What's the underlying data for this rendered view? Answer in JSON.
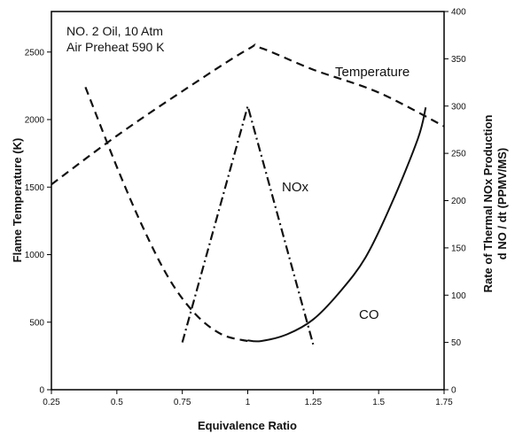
{
  "chart_data": {
    "type": "line",
    "x_axis": {
      "label": "Equivalence Ratio",
      "ticks": [
        "0.25",
        "0.5",
        "0.75",
        "1",
        "1.25",
        "1.5",
        "1.75"
      ],
      "lim": [
        0.25,
        1.75
      ]
    },
    "y_left": {
      "label": "Flame Temperature (K)",
      "ticks": [
        "0",
        "500",
        "1000",
        "1500",
        "2000",
        "2500"
      ],
      "lim": [
        0,
        2800
      ]
    },
    "y_right": {
      "label_line1": "Rate of Thermal NOx Production",
      "label_line2": "d NO / dt (PPMV/MS)",
      "ticks": [
        "0",
        "50",
        "100",
        "150",
        "200",
        "250",
        "300",
        "350",
        "400"
      ],
      "lim": [
        0,
        400
      ]
    },
    "annotations": [
      "NO. 2 Oil, 10 Atm",
      "Air Preheat 590 K"
    ],
    "series": [
      {
        "name": "Temperature",
        "axis": "left",
        "style": "dashed",
        "x": [
          0.25,
          0.5,
          0.75,
          1.0,
          1.05,
          1.25,
          1.5,
          1.75
        ],
        "y": [
          1520,
          1880,
          2210,
          2520,
          2530,
          2370,
          2200,
          1950
        ]
      },
      {
        "name": "NOx",
        "axis": "right",
        "style": "dashdot",
        "x": [
          0.75,
          1.0,
          1.25
        ],
        "y": [
          50,
          300,
          48
        ]
      },
      {
        "name": "CO",
        "axis": "left",
        "style": "solid",
        "x": [
          1.0,
          1.05,
          1.15,
          1.25,
          1.35,
          1.45,
          1.55,
          1.65,
          1.68
        ],
        "y": [
          365,
          360,
          410,
          520,
          720,
          980,
          1380,
          1860,
          2090
        ]
      },
      {
        "name": "",
        "axis": "left",
        "style": "dashed",
        "x": [
          0.38,
          0.5,
          0.6,
          0.7,
          0.8,
          0.9,
          1.0
        ],
        "y": [
          2240,
          1650,
          1200,
          820,
          560,
          410,
          360
        ]
      }
    ],
    "grid": false,
    "legend": "none"
  }
}
